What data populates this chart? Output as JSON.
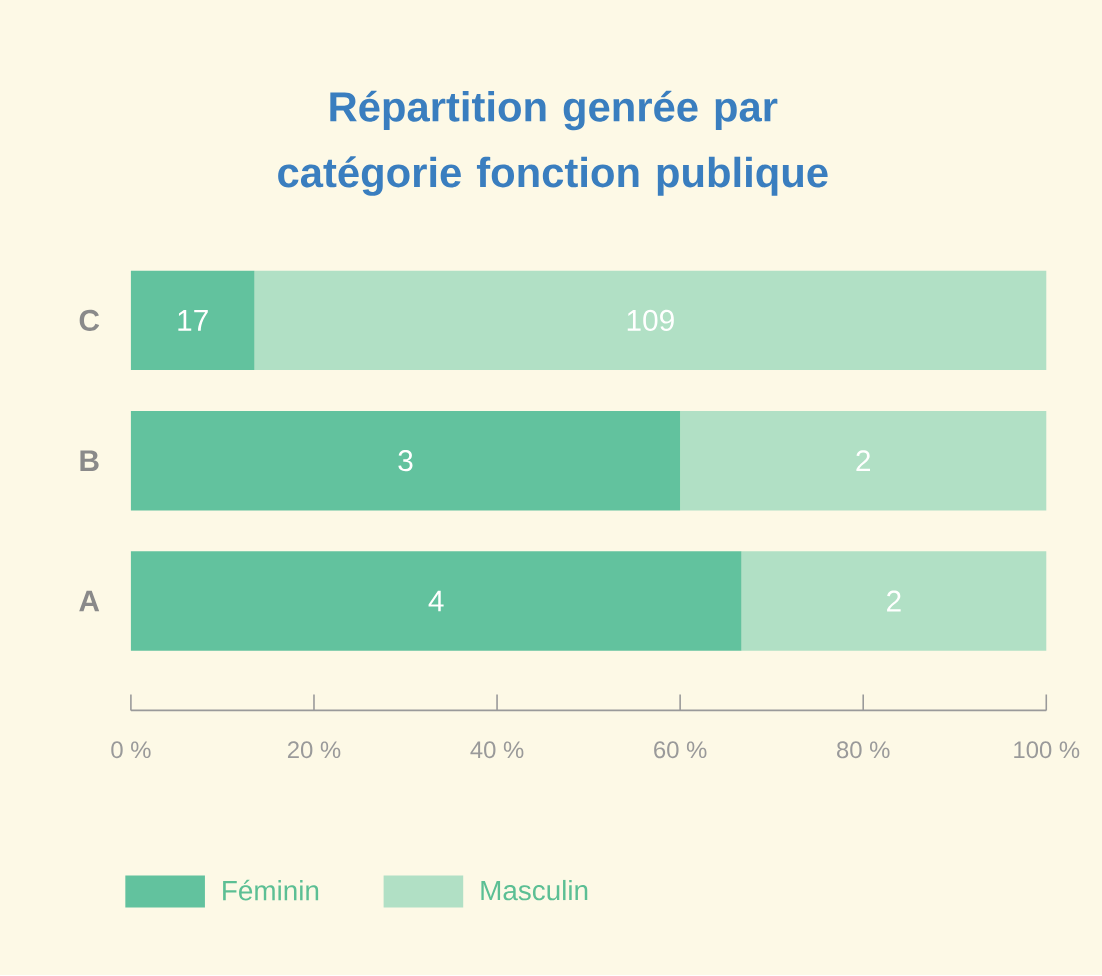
{
  "chart_data": {
    "type": "bar",
    "orientation": "horizontal",
    "stacked": true,
    "title": "Répartition genrée par catégorie fonction publique",
    "categories": [
      "C",
      "B",
      "A"
    ],
    "series": [
      {
        "name": "Féminin",
        "color": "#62c29e",
        "values": [
          13.5,
          60,
          66.7
        ]
      },
      {
        "name": "Masculin",
        "color": "#b1e0c5",
        "values": [
          86.5,
          40,
          33.3
        ]
      }
    ],
    "annotations": [
      {
        "text": "17",
        "x": 6.75,
        "y": "C"
      },
      {
        "text": "109",
        "x": 56.75,
        "y": "C"
      },
      {
        "text": "3",
        "x": 30,
        "y": "B"
      },
      {
        "text": "2",
        "x": 80,
        "y": "B"
      },
      {
        "text": "4",
        "x": 33.35,
        "y": "A"
      },
      {
        "text": "2",
        "x": 83.35,
        "y": "A"
      }
    ],
    "xlim": [
      0,
      100
    ],
    "xticks": [
      {
        "value": 0,
        "label": "0 %"
      },
      {
        "value": 20,
        "label": "20 %"
      },
      {
        "value": 40,
        "label": "40 %"
      },
      {
        "value": 60,
        "label": "60 %"
      },
      {
        "value": 80,
        "label": "80 %"
      },
      {
        "value": 100,
        "label": "100 %"
      }
    ],
    "legend": "bottom left"
  }
}
